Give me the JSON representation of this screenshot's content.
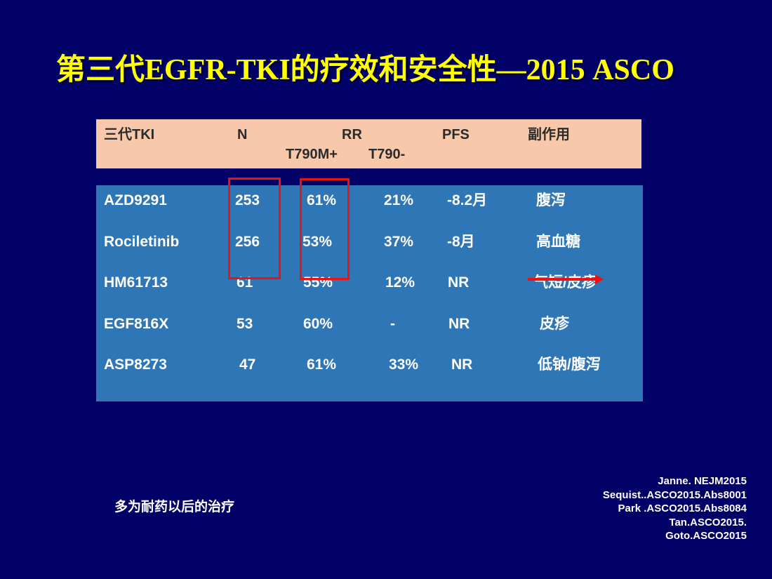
{
  "title": "第三代EGFR-TKI的疗效和安全性—2015 ASCO",
  "table": {
    "headers": {
      "drug": "三代TKI",
      "n": "N",
      "rr": "RR",
      "rr_sub_pos": "T790M+",
      "rr_sub_neg": "T790-",
      "pfs": "PFS",
      "side_effects": "副作用"
    },
    "rows": [
      {
        "drug": "AZD9291",
        "n": "253",
        "rr_pos": "61%",
        "rr_neg": "21%",
        "pfs": "-8.2月",
        "side_effects": "腹泻"
      },
      {
        "drug": "Rociletinib",
        "n": "256",
        "rr_pos": "53%",
        "rr_neg": "37%",
        "pfs": "-8月",
        "side_effects": "高血糖"
      },
      {
        "drug": "HM61713",
        "n": "61",
        "rr_pos": "55%",
        "rr_neg": "12%",
        "pfs": "NR",
        "side_effects": "气短/皮疹"
      },
      {
        "drug": "EGF816X",
        "n": "53",
        "rr_pos": "60%",
        "rr_neg": "-",
        "pfs": "NR",
        "side_effects": "皮疹"
      },
      {
        "drug": "ASP8273",
        "n": "47",
        "rr_pos": "61%",
        "rr_neg": "33%",
        "pfs": "NR",
        "side_effects": "低钠/腹泻"
      }
    ]
  },
  "footnote": "多为耐药以后的治疗",
  "references": [
    "Janne. NEJM2015",
    "Sequist..ASCO2015.Abs8001",
    "Park .ASCO2015.Abs8084",
    "Tan.ASCO2015.",
    "Goto.ASCO2015"
  ],
  "colors": {
    "background": "#000066",
    "title": "#ffff00",
    "header_band": "#f7c8a9",
    "table_body": "#2e76b6",
    "annotation_red": "#ee1111"
  }
}
